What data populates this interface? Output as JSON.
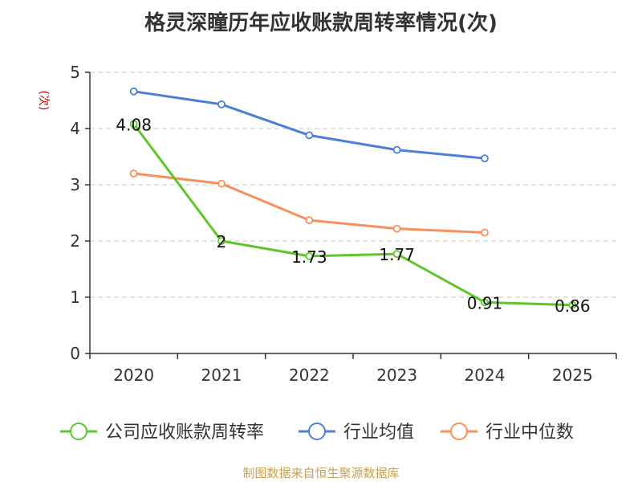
{
  "chart_data": {
    "type": "line",
    "title": "格灵深瞳历年应收账款周转率情况(次)",
    "ylabel": "(次)",
    "xlabel": "",
    "categories": [
      "2020",
      "2021",
      "2022",
      "2023",
      "2024",
      "2025"
    ],
    "ylim": [
      0,
      5
    ],
    "yticks": [
      0,
      1,
      2,
      3,
      4,
      5
    ],
    "grid": true,
    "legend_position": "bottom",
    "series": [
      {
        "name": "公司应收账款周转率",
        "color": "#5ec52a",
        "values": [
          4.08,
          2,
          1.73,
          1.77,
          0.91,
          0.86
        ],
        "labels": [
          "4.08",
          "2",
          "1.73",
          "1.77",
          "0.91",
          "0.86"
        ]
      },
      {
        "name": "行业均值",
        "color": "#4e7fd6",
        "values": [
          4.66,
          4.43,
          3.88,
          3.62,
          3.47,
          null
        ]
      },
      {
        "name": "行业中位数",
        "color": "#f7905a",
        "values": [
          3.2,
          3.02,
          2.37,
          2.22,
          2.15,
          null
        ]
      }
    ]
  },
  "source": "制图数据来自恒生聚源数据库"
}
